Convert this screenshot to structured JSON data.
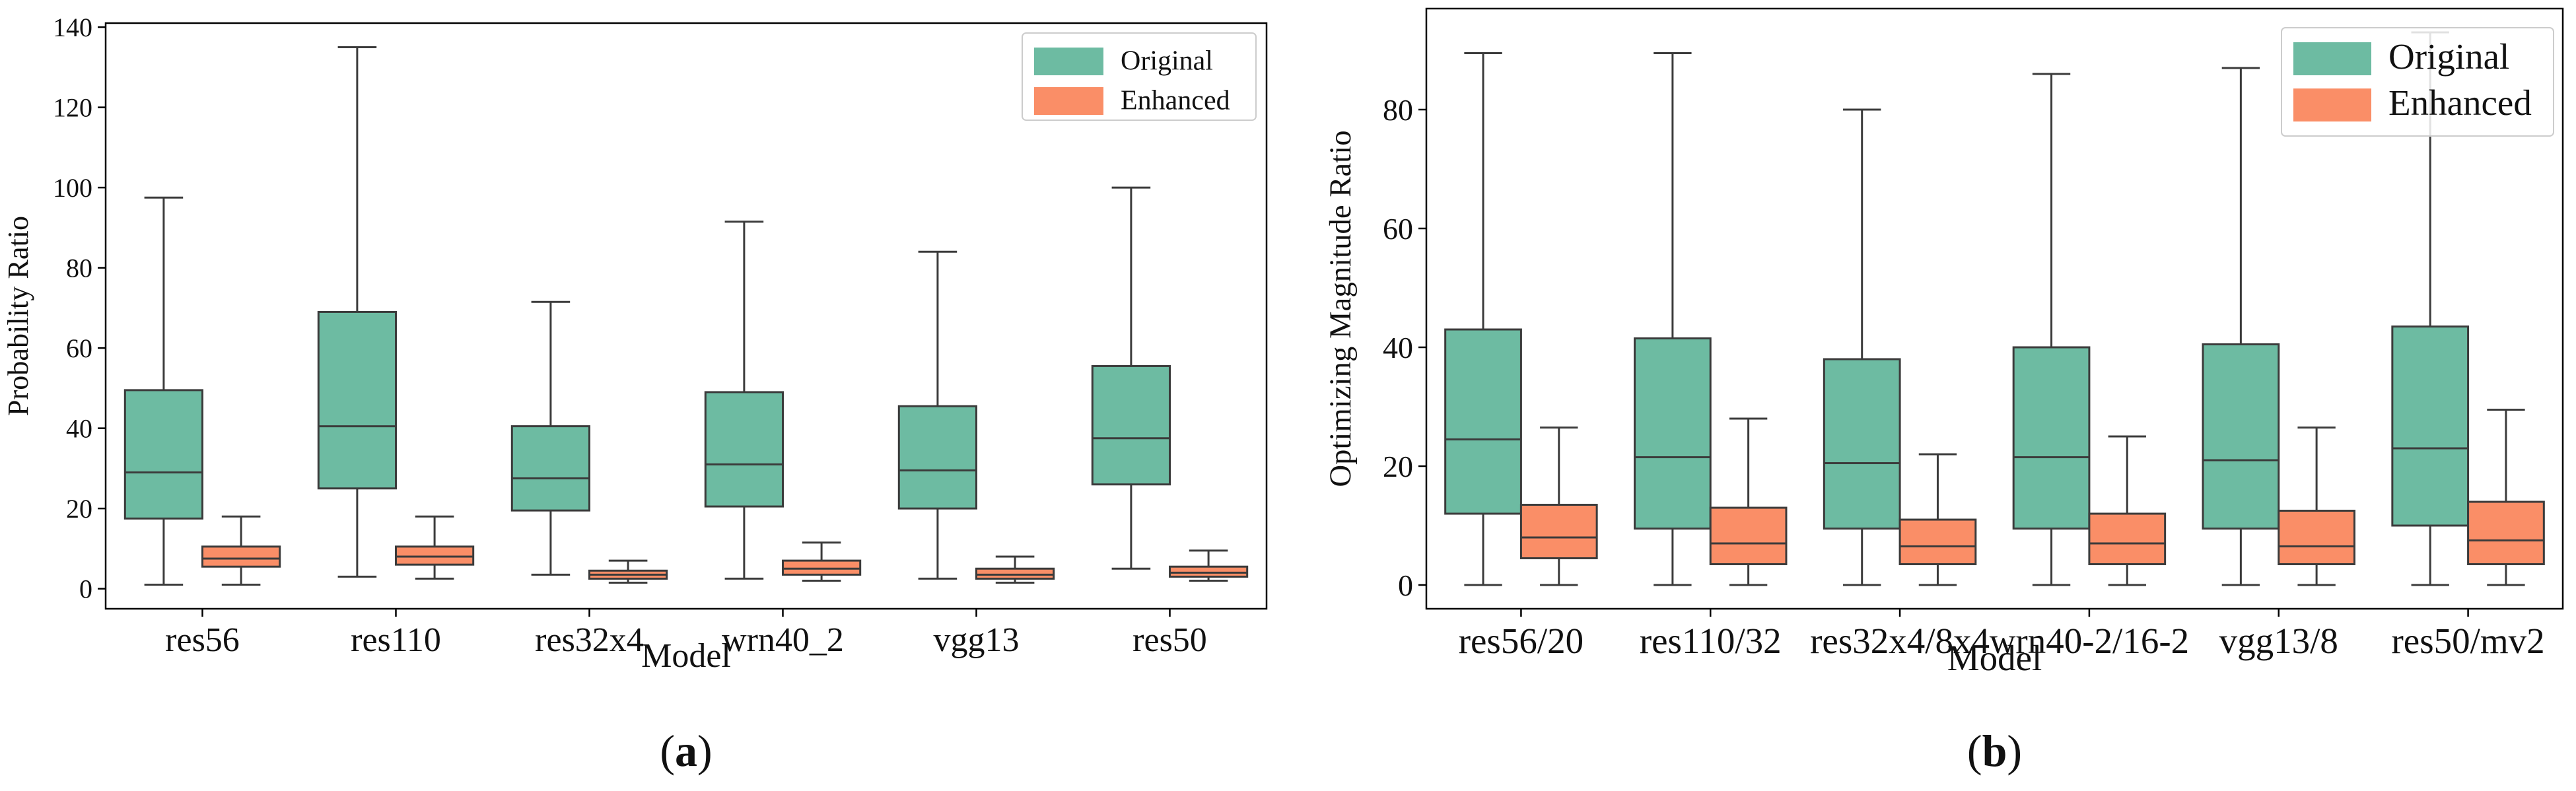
{
  "colors": {
    "original": "#6dbba2",
    "enhanced": "#fa8e67",
    "line": "#3b3b3b"
  },
  "chart_data": [
    {
      "type": "boxplot",
      "panel_label": "(a)",
      "xlabel": "Model",
      "ylabel": "Probability Ratio",
      "ylim": [
        -5,
        141
      ],
      "yticks": [
        0,
        20,
        40,
        60,
        80,
        100,
        120,
        140
      ],
      "categories": [
        "res56",
        "res110",
        "res32x4",
        "wrn40_2",
        "vgg13",
        "res50"
      ],
      "legend": {
        "location": "top-right",
        "entries": [
          "Original",
          "Enhanced"
        ]
      },
      "series": [
        {
          "name": "Original",
          "boxes": [
            {
              "min": 1,
              "q1": 17.5,
              "median": 29,
              "q3": 49.5,
              "max": 97.5
            },
            {
              "min": 3,
              "q1": 25,
              "median": 40.5,
              "q3": 69,
              "max": 135
            },
            {
              "min": 3.5,
              "q1": 19.5,
              "median": 27.5,
              "q3": 40.5,
              "max": 71.5
            },
            {
              "min": 2.5,
              "q1": 20.5,
              "median": 31,
              "q3": 49,
              "max": 91.5
            },
            {
              "min": 2.5,
              "q1": 20,
              "median": 29.5,
              "q3": 45.5,
              "max": 84
            },
            {
              "min": 5,
              "q1": 26,
              "median": 37.5,
              "q3": 55.5,
              "max": 100
            }
          ]
        },
        {
          "name": "Enhanced",
          "boxes": [
            {
              "min": 1,
              "q1": 5.5,
              "median": 7.5,
              "q3": 10.5,
              "max": 18
            },
            {
              "min": 2.5,
              "q1": 6,
              "median": 8,
              "q3": 10.5,
              "max": 18
            },
            {
              "min": 1.5,
              "q1": 2.5,
              "median": 3.5,
              "q3": 4.5,
              "max": 7
            },
            {
              "min": 2,
              "q1": 3.5,
              "median": 5,
              "q3": 7,
              "max": 11.5
            },
            {
              "min": 1.5,
              "q1": 2.5,
              "median": 3.5,
              "q3": 5,
              "max": 8
            },
            {
              "min": 2,
              "q1": 3,
              "median": 4,
              "q3": 5.5,
              "max": 9.5
            }
          ]
        }
      ]
    },
    {
      "type": "boxplot",
      "panel_label": "(b)",
      "xlabel": "Model",
      "ylabel": "Optimizing Magnitude Ratio",
      "ylim": [
        -4,
        97
      ],
      "yticks": [
        0,
        20,
        40,
        60,
        80
      ],
      "categories": [
        "res56/20",
        "res110/32",
        "res32x4/8x4",
        "wrn40-2/16-2",
        "vgg13/8",
        "res50/mv2"
      ],
      "legend": {
        "location": "top-right",
        "entries": [
          "Original",
          "Enhanced"
        ]
      },
      "series": [
        {
          "name": "Original",
          "boxes": [
            {
              "min": 0,
              "q1": 12,
              "median": 24.5,
              "q3": 43,
              "max": 89.5
            },
            {
              "min": 0,
              "q1": 9.5,
              "median": 21.5,
              "q3": 41.5,
              "max": 89.5
            },
            {
              "min": 0,
              "q1": 9.5,
              "median": 20.5,
              "q3": 38,
              "max": 80
            },
            {
              "min": 0,
              "q1": 9.5,
              "median": 21.5,
              "q3": 40,
              "max": 86
            },
            {
              "min": 0,
              "q1": 9.5,
              "median": 21,
              "q3": 40.5,
              "max": 87
            },
            {
              "min": 0,
              "q1": 10,
              "median": 23,
              "q3": 43.5,
              "max": 93
            }
          ]
        },
        {
          "name": "Enhanced",
          "boxes": [
            {
              "min": 0,
              "q1": 4.5,
              "median": 8,
              "q3": 13.5,
              "max": 26.5
            },
            {
              "min": 0,
              "q1": 3.5,
              "median": 7,
              "q3": 13,
              "max": 28
            },
            {
              "min": 0,
              "q1": 3.5,
              "median": 6.5,
              "q3": 11,
              "max": 22
            },
            {
              "min": 0,
              "q1": 3.5,
              "median": 7,
              "q3": 12,
              "max": 25
            },
            {
              "min": 0,
              "q1": 3.5,
              "median": 6.5,
              "q3": 12.5,
              "max": 26.5
            },
            {
              "min": 0,
              "q1": 3.5,
              "median": 7.5,
              "q3": 14,
              "max": 29.5
            }
          ]
        }
      ]
    }
  ]
}
